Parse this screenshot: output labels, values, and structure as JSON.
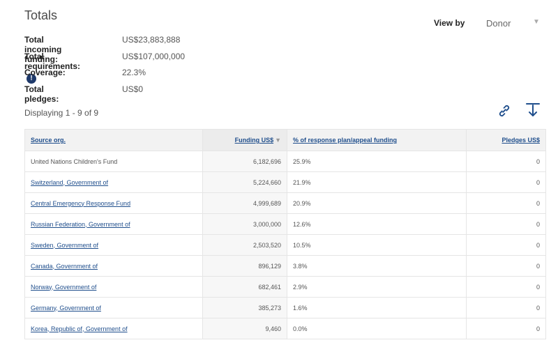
{
  "title": "Totals",
  "view_by": {
    "label": "View by",
    "value": "Donor"
  },
  "stats": [
    {
      "label": "Total incoming funding:",
      "value": "US$23,883,888",
      "info": false
    },
    {
      "label": "Total requirements:",
      "value": "US$107,000,000",
      "info": true
    },
    {
      "label": "Coverage:",
      "value": "22.3%",
      "info": false
    },
    {
      "label": "Total pledges:",
      "value": "US$0",
      "info": false
    }
  ],
  "displaying": "Displaying 1 - 9 of 9",
  "table": {
    "headers": {
      "source": "Source org.",
      "funding": "Funding US$",
      "percent": "% of response plan/appeal funding",
      "pledges": "Pledges US$"
    },
    "rows": [
      {
        "source": "United Nations Children's Fund",
        "link": false,
        "funding": "6,182,696",
        "percent": "25.9%",
        "pledges": "0"
      },
      {
        "source": "Switzerland, Government of",
        "link": true,
        "funding": "5,224,660",
        "percent": "21.9%",
        "pledges": "0"
      },
      {
        "source": "Central Emergency Response Fund",
        "link": true,
        "funding": "4,999,689",
        "percent": "20.9%",
        "pledges": "0"
      },
      {
        "source": "Russian Federation, Government of",
        "link": true,
        "funding": "3,000,000",
        "percent": "12.6%",
        "pledges": "0"
      },
      {
        "source": "Sweden, Government of",
        "link": true,
        "funding": "2,503,520",
        "percent": "10.5%",
        "pledges": "0"
      },
      {
        "source": "Canada, Government of",
        "link": true,
        "funding": "896,129",
        "percent": "3.8%",
        "pledges": "0"
      },
      {
        "source": "Norway, Government of",
        "link": true,
        "funding": "682,461",
        "percent": "2.9%",
        "pledges": "0"
      },
      {
        "source": "Germany, Government of",
        "link": true,
        "funding": "385,273",
        "percent": "1.6%",
        "pledges": "0"
      },
      {
        "source": "Korea, Republic of, Government of",
        "link": true,
        "funding": "9,460",
        "percent": "0.0%",
        "pledges": "0"
      }
    ]
  }
}
